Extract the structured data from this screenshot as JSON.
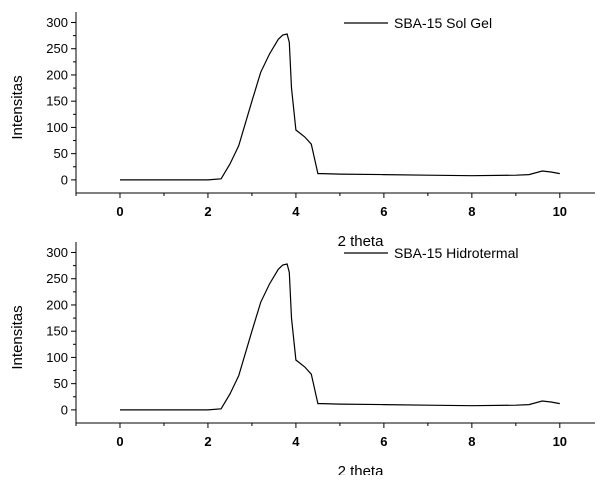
{
  "chart_data": [
    {
      "type": "line",
      "xlabel": "2 theta",
      "ylabel": "Intensitas",
      "xlim": [
        -1,
        10.8
      ],
      "ylim": [
        -25,
        320
      ],
      "xticks": [
        0,
        2,
        4,
        6,
        8,
        10
      ],
      "xtick_labels": [
        "0",
        "2",
        "4",
        "6",
        "8",
        "10"
      ],
      "yticks": [
        0,
        50,
        100,
        150,
        200,
        250,
        300
      ],
      "ytick_labels": [
        "0",
        "50",
        "100",
        "150",
        "200",
        "250",
        "300"
      ],
      "legend_position": "top-right",
      "series": [
        {
          "name": "SBA-15 Sol Gel",
          "color": "#000000",
          "x": [
            0,
            1,
            2,
            2.3,
            2.5,
            2.7,
            3.0,
            3.2,
            3.4,
            3.6,
            3.7,
            3.8,
            3.85,
            3.9,
            4.0,
            4.2,
            4.35,
            4.5,
            4.6,
            5,
            6,
            7,
            8,
            9,
            9.3,
            9.6,
            9.8,
            10
          ],
          "y": [
            0,
            0,
            0,
            2,
            30,
            65,
            150,
            205,
            240,
            268,
            276,
            278,
            262,
            175,
            95,
            82,
            68,
            12,
            12,
            11,
            10,
            9,
            8,
            9,
            10,
            17,
            15,
            12
          ]
        },
        {
          "name": "SBA-15 Hidrotermal",
          "color": "#000000",
          "x": [
            0,
            1,
            2,
            2.3,
            2.5,
            2.7,
            3.0,
            3.2,
            3.4,
            3.6,
            3.7,
            3.8,
            3.85,
            3.9,
            4.0,
            4.2,
            4.35,
            4.5,
            4.6,
            5,
            6,
            7,
            8,
            9,
            9.3,
            9.6,
            9.8,
            10
          ],
          "y": [
            0,
            0,
            0,
            2,
            30,
            65,
            150,
            205,
            240,
            268,
            276,
            278,
            262,
            175,
            95,
            82,
            68,
            12,
            12,
            11,
            10,
            9,
            8,
            9,
            10,
            17,
            15,
            12
          ]
        }
      ]
    }
  ]
}
